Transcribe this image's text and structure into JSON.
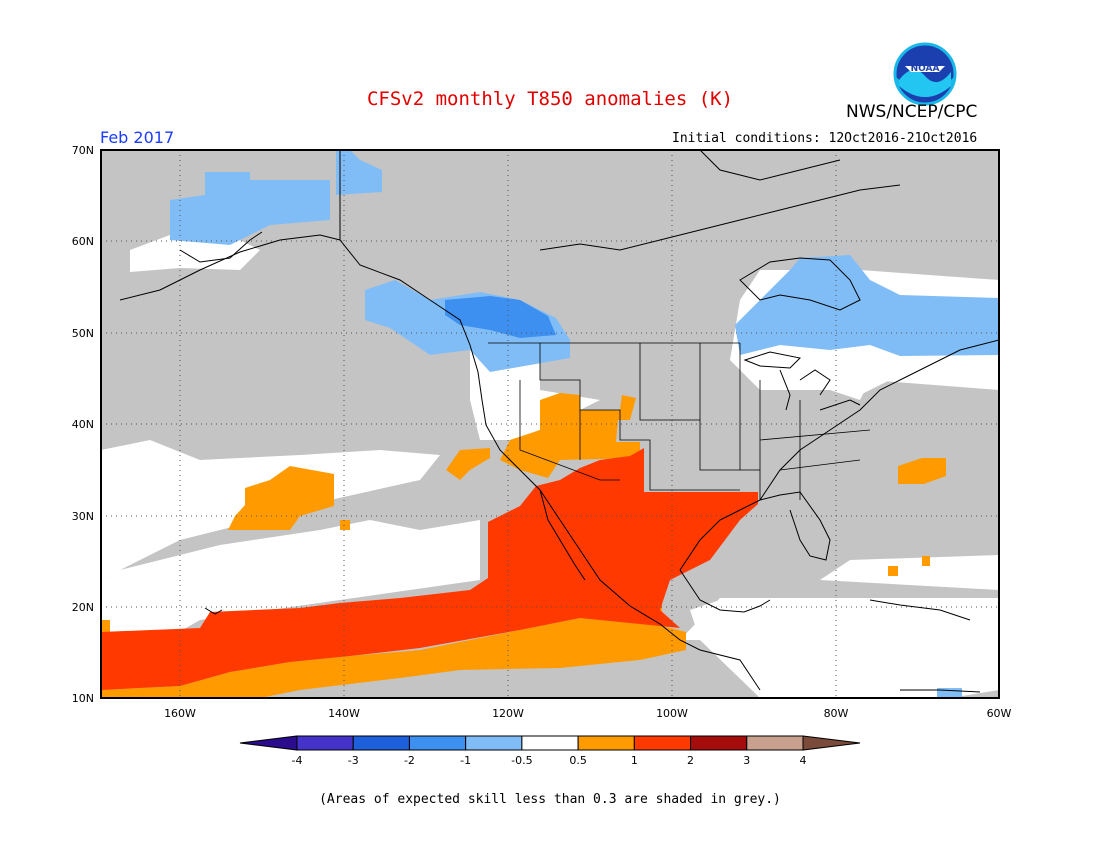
{
  "title": "CFSv2 monthly T850 anomalies (K)",
  "agency": "NWS/NCEP/CPC",
  "logo_text": "NOAA",
  "month": "Feb 2017",
  "initial_conditions": "Initial conditions: 12Oct2016-21Oct2016",
  "lat_labels": [
    "70N",
    "60N",
    "50N",
    "40N",
    "30N",
    "20N",
    "10N"
  ],
  "lon_labels": [
    "160W",
    "140W",
    "120W",
    "100W",
    "80W",
    "60W"
  ],
  "colorbar": {
    "bins": [
      {
        "color": "#2a0c8c"
      },
      {
        "color": "#4433c8"
      },
      {
        "color": "#1e5fdc"
      },
      {
        "color": "#3d8ff0"
      },
      {
        "color": "#80bdf7"
      },
      {
        "color": "#ffffff"
      },
      {
        "color": "#ff9b00"
      },
      {
        "color": "#ff3900"
      },
      {
        "color": "#a50d0d"
      },
      {
        "color": "#c8a08e"
      },
      {
        "color": "#7a4a3a"
      }
    ],
    "labels": [
      "-4",
      "-3",
      "-2",
      "-1",
      "-0.5",
      "0.5",
      "1",
      "2",
      "3",
      "4"
    ]
  },
  "map_colors": {
    "grey": "#c4c4c4",
    "light_blue": "#80bdf7",
    "mid_blue": "#3d8ff0",
    "orange": "#ff9b00",
    "red": "#ff3900",
    "white": "#ffffff"
  },
  "footnote": "(Areas of expected skill less than 0.3 are shaded in grey.)"
}
